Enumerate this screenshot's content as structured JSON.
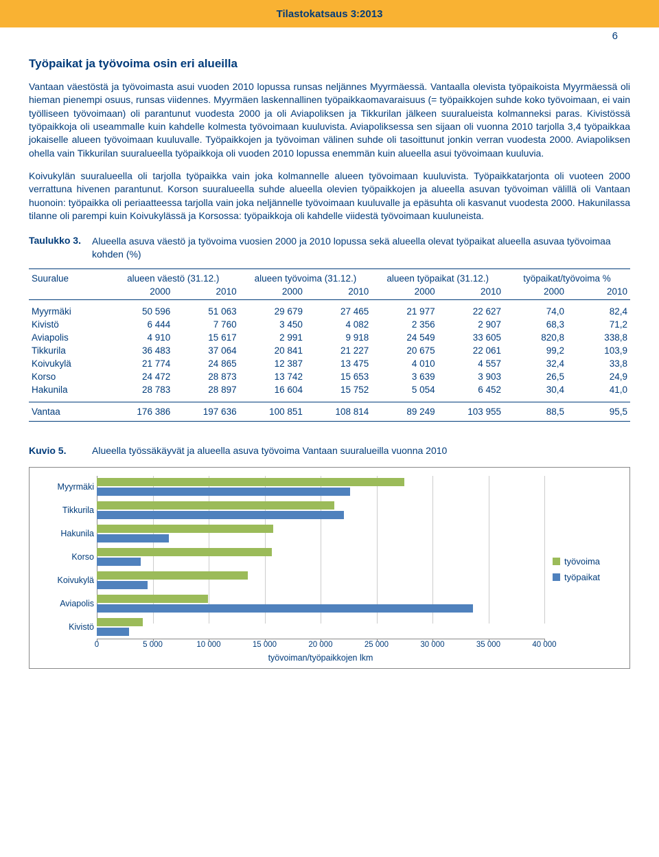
{
  "header": {
    "title": "Tilastokatsaus 3:2013",
    "page_number": "6"
  },
  "section_title": "Työpaikat ja työvoima osin eri alueilla",
  "paragraphs": {
    "p1": "Vantaan väestöstä ja työvoimasta asui vuoden 2010 lopussa runsas neljännes Myyrmäessä. Vantaalla olevista työpaikoista Myyrmäessä oli hieman pienempi osuus, runsas viidennes. Myyrmäen laskennallinen työpaikkaomavaraisuus (= työpaikkojen suhde koko työvoimaan, ei vain työlliseen työvoimaan) oli parantunut vuodesta 2000 ja oli Aviapoliksen ja Tikkurilan jälkeen suuralueista kolmanneksi paras. Kivistössä työpaikkoja oli useammalle kuin kahdelle kolmesta työvoimaan kuuluvista. Aviapoliksessa sen sijaan oli vuonna 2010 tarjolla 3,4 työpaikkaa jokaiselle alueen työvoimaan kuuluvalle. Työpaikkojen ja työvoiman välinen suhde oli tasoittunut jonkin verran vuodesta 2000. Aviapoliksen ohella vain Tikkurilan suuralueella työpaikkoja oli vuoden 2010 lopussa enemmän kuin alueella asui työvoimaan kuuluvia.",
    "p2": "Koivukylän suuralueella oli tarjolla työpaikka vain joka kolmannelle alueen työvoimaan kuuluvista. Työpaikkatarjonta oli vuoteen 2000 verrattuna hivenen parantunut. Korson suuralueella suhde alueella olevien työpaikkojen ja alueella asuvan työvoiman välillä oli Vantaan huonoin: työpaikka oli periaatteessa tarjolla vain joka neljännelle työvoimaan kuuluvalle ja epäsuhta oli kasvanut vuodesta 2000. Hakunilassa tilanne oli parempi kuin Koivukylässä ja Korsossa: työpaikkoja oli kahdelle viidestä työvoimaan kuuluneista."
  },
  "table3": {
    "label": "Taulukko 3.",
    "caption": "Alueella asuva väestö ja työvoima vuosien 2000 ja 2010 lopussa sekä alueella olevat työpaikat alueella asuvaa työvoimaa kohden (%)",
    "col_suuralue": "Suuralue",
    "group_headers": {
      "vaesto": "alueen väestö (31.12.)",
      "tyovoima": "alueen työvoima (31.12.)",
      "tyopaikat": "alueen työpaikat (31.12.)",
      "ratio": "työpaikat/työvoima %"
    },
    "year_2000": "2000",
    "year_2010": "2010",
    "rows": [
      {
        "name": "Myyrmäki",
        "v2000": "50 596",
        "v2010": "51 063",
        "tv2000": "29 679",
        "tv2010": "27 465",
        "tp2000": "21 977",
        "tp2010": "22 627",
        "r2000": "74,0",
        "r2010": "82,4"
      },
      {
        "name": "Kivistö",
        "v2000": "6 444",
        "v2010": "7 760",
        "tv2000": "3 450",
        "tv2010": "4 082",
        "tp2000": "2 356",
        "tp2010": "2 907",
        "r2000": "68,3",
        "r2010": "71,2"
      },
      {
        "name": "Aviapolis",
        "v2000": "4 910",
        "v2010": "15 617",
        "tv2000": "2 991",
        "tv2010": "9 918",
        "tp2000": "24 549",
        "tp2010": "33 605",
        "r2000": "820,8",
        "r2010": "338,8",
        "bold_ratio": true
      },
      {
        "name": "Tikkurila",
        "v2000": "36 483",
        "v2010": "37 064",
        "tv2000": "20 841",
        "tv2010": "21 227",
        "tp2000": "20 675",
        "tp2010": "22 061",
        "r2000": "99,2",
        "r2010": "103,9",
        "bold_r2010": true
      },
      {
        "name": "Koivukylä",
        "v2000": "21 774",
        "v2010": "24 865",
        "tv2000": "12 387",
        "tv2010": "13 475",
        "tp2000": "4 010",
        "tp2010": "4 557",
        "r2000": "32,4",
        "r2010": "33,8"
      },
      {
        "name": "Korso",
        "v2000": "24 472",
        "v2010": "28 873",
        "tv2000": "13 742",
        "tv2010": "15 653",
        "tp2000": "3 639",
        "tp2010": "3 903",
        "r2000": "26,5",
        "r2010": "24,9"
      },
      {
        "name": "Hakunila",
        "v2000": "28 783",
        "v2010": "28 897",
        "tv2000": "16 604",
        "tv2010": "15 752",
        "tp2000": "5 054",
        "tp2010": "6 452",
        "r2000": "30,4",
        "r2010": "41,0"
      }
    ],
    "total": {
      "name": "Vantaa",
      "v2000": "176 386",
      "v2010": "197 636",
      "tv2000": "100 851",
      "tv2010": "108 814",
      "tp2000": "89 249",
      "tp2010": "103 955",
      "r2000": "88,5",
      "r2010": "95,5"
    }
  },
  "chart5": {
    "label": "Kuvio 5.",
    "caption": "Alueella työssäkäyvät ja alueella asuva työvoima Vantaan suuralueilla vuonna 2010",
    "type": "grouped-horizontal-bar",
    "x_title": "työvoiman/työpaikkojen lkm",
    "x_max": 40000,
    "x_tick_step": 5000,
    "x_ticks": [
      "0",
      "5 000",
      "10 000",
      "15 000",
      "20 000",
      "25 000",
      "30 000",
      "35 000",
      "40 000"
    ],
    "colors": {
      "tyovoima": "#9bbb59",
      "tyopaikat": "#4f81bd",
      "grid": "#cccccc",
      "text": "#003b7a",
      "background": "#ffffff",
      "border": "#888888"
    },
    "legend": {
      "tyovoima": "työvoima",
      "tyopaikat": "työpaikat"
    },
    "categories": [
      {
        "name": "Myyrmäki",
        "tyovoima": 27465,
        "tyopaikat": 22627
      },
      {
        "name": "Tikkurila",
        "tyovoima": 21227,
        "tyopaikat": 22061
      },
      {
        "name": "Hakunila",
        "tyovoima": 15752,
        "tyopaikat": 6452
      },
      {
        "name": "Korso",
        "tyovoima": 15653,
        "tyopaikat": 3903
      },
      {
        "name": "Koivukylä",
        "tyovoima": 13475,
        "tyopaikat": 4557
      },
      {
        "name": "Aviapolis",
        "tyovoima": 9918,
        "tyopaikat": 33605
      },
      {
        "name": "Kivistö",
        "tyovoima": 4082,
        "tyopaikat": 2907
      }
    ]
  }
}
